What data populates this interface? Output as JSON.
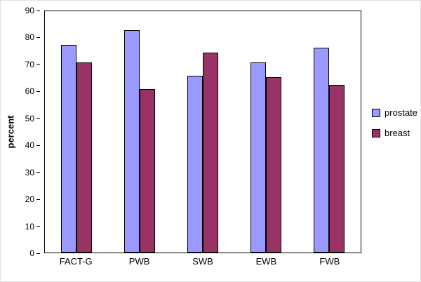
{
  "chart_data": {
    "type": "bar",
    "title": "",
    "xlabel": "",
    "ylabel": "percent",
    "categories": [
      "FACT-G",
      "PWB",
      "SWB",
      "EWB",
      "FWB"
    ],
    "series": [
      {
        "name": "prostate",
        "color": "#9999FF",
        "values": [
          77.5,
          83,
          66,
          71,
          76.5
        ]
      },
      {
        "name": "breast",
        "color": "#993366",
        "values": [
          71,
          61,
          74.5,
          65.5,
          62.5
        ]
      }
    ],
    "ylim": [
      0,
      90
    ],
    "ytick_step": 10,
    "grid": false,
    "legend_position": "right",
    "axis_color": "#000000"
  }
}
